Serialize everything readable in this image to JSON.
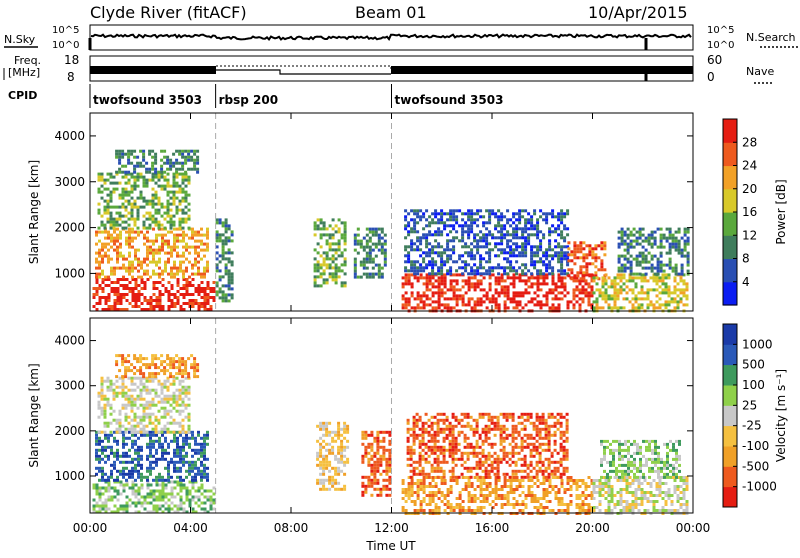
{
  "header": {
    "title": "Clyde River (fitACF)",
    "beam": "Beam 01",
    "date": "10/Apr/2015"
  },
  "summary": {
    "nsky_label": "N.Sky",
    "nsky_ticks": [
      "10^5",
      "10^0"
    ],
    "nsearch_label": "N.Search",
    "freq_label_top": "Freq.",
    "freq_label_bottom": "[MHz]",
    "freq_ticks": [
      "18",
      "8"
    ],
    "nave_label": "Nave",
    "nave_ticks": [
      "60",
      "0"
    ],
    "cpid_label": "CPID",
    "cpid_segments": [
      {
        "name": "twofsound 3503",
        "start_h": 0,
        "end_h": 5
      },
      {
        "name": "rbsp 200",
        "start_h": 5,
        "end_h": 12
      },
      {
        "name": "twofsound 3503",
        "start_h": 12,
        "end_h": 24
      }
    ]
  },
  "chart_data": [
    {
      "type": "heatmap",
      "name": "Power",
      "ylabel": "Slant Range [km]",
      "yticks": [
        1000,
        2000,
        3000,
        4000
      ],
      "ylim": [
        180,
        4500
      ],
      "xlim": [
        0,
        24
      ],
      "colorbar_label": "Power [dB]",
      "colorbar_ticks": [
        "4",
        "8",
        "12",
        "16",
        "20",
        "24",
        "28"
      ],
      "colors": [
        "#0b1df2",
        "#2a4fb3",
        "#3f7d5c",
        "#5aa83c",
        "#d8c92a",
        "#f2a127",
        "#ee5a1e",
        "#e51d12"
      ],
      "regions": [
        {
          "h0": 0.1,
          "h1": 4.9,
          "r0": 180,
          "r1": 900,
          "level": 7
        },
        {
          "h0": 0.2,
          "h1": 4.7,
          "r0": 900,
          "r1": 2000,
          "level": 5
        },
        {
          "h0": 0.3,
          "h1": 4.0,
          "r0": 2000,
          "r1": 3200,
          "level": 3
        },
        {
          "h0": 1.0,
          "h1": 4.3,
          "r0": 3200,
          "r1": 3700,
          "level": 2
        },
        {
          "h0": 5.0,
          "h1": 5.7,
          "r0": 400,
          "r1": 2200,
          "level": 2
        },
        {
          "h0": 8.9,
          "h1": 10.2,
          "r0": 700,
          "r1": 2200,
          "level": 3
        },
        {
          "h0": 10.5,
          "h1": 11.7,
          "r0": 900,
          "r1": 2000,
          "level": 2
        },
        {
          "h0": 12.4,
          "h1": 20.0,
          "r0": 180,
          "r1": 1000,
          "level": 7
        },
        {
          "h0": 12.5,
          "h1": 19.0,
          "r0": 1000,
          "r1": 2400,
          "level": 1
        },
        {
          "h0": 19.0,
          "h1": 20.5,
          "r0": 900,
          "r1": 1700,
          "level": 6
        },
        {
          "h0": 20.0,
          "h1": 23.8,
          "r0": 180,
          "r1": 1000,
          "level": 4
        },
        {
          "h0": 21.0,
          "h1": 23.8,
          "r0": 1000,
          "r1": 2000,
          "level": 2
        }
      ]
    },
    {
      "type": "heatmap",
      "name": "Velocity",
      "ylabel": "Slant Range [km]",
      "yticks": [
        1000,
        2000,
        3000,
        4000
      ],
      "ylim": [
        180,
        4500
      ],
      "xlim": [
        0,
        24
      ],
      "colorbar_label": "Velocity [m s⁻¹]",
      "colorbar_ticks": [
        "-1000",
        "-500",
        "-100",
        "-25",
        "25",
        "100",
        "500",
        "1000"
      ],
      "colors": [
        "#e51d12",
        "#ee5a1e",
        "#f0a027",
        "#f5c040",
        "#c8c8c8",
        "#8fd04a",
        "#3e9a5d",
        "#2a59b8",
        "#1a3aa8"
      ],
      "regions": [
        {
          "h0": 0.1,
          "h1": 4.9,
          "r0": 180,
          "r1": 900,
          "level": 5
        },
        {
          "h0": 0.2,
          "h1": 4.7,
          "r0": 900,
          "r1": 2000,
          "level": 7
        },
        {
          "h0": 0.3,
          "h1": 4.0,
          "r0": 2000,
          "r1": 3200,
          "level": 4
        },
        {
          "h0": 1.0,
          "h1": 4.3,
          "r0": 3200,
          "r1": 3700,
          "level": 2
        },
        {
          "h0": 9.0,
          "h1": 10.2,
          "r0": 700,
          "r1": 2200,
          "level": 3
        },
        {
          "h0": 10.8,
          "h1": 11.9,
          "r0": 600,
          "r1": 2000,
          "level": 1
        },
        {
          "h0": 12.4,
          "h1": 20.0,
          "r0": 180,
          "r1": 1000,
          "level": 2
        },
        {
          "h0": 12.6,
          "h1": 19.0,
          "r0": 1000,
          "r1": 2400,
          "level": 1
        },
        {
          "h0": 20.0,
          "h1": 23.8,
          "r0": 180,
          "r1": 1000,
          "level": 4
        },
        {
          "h0": 20.3,
          "h1": 23.5,
          "r0": 1000,
          "r1": 1800,
          "level": 5
        }
      ]
    }
  ],
  "xaxis": {
    "ticks": [
      "00:00",
      "04:00",
      "08:00",
      "12:00",
      "16:00",
      "20:00",
      "00:00"
    ],
    "label": "Time UT"
  }
}
